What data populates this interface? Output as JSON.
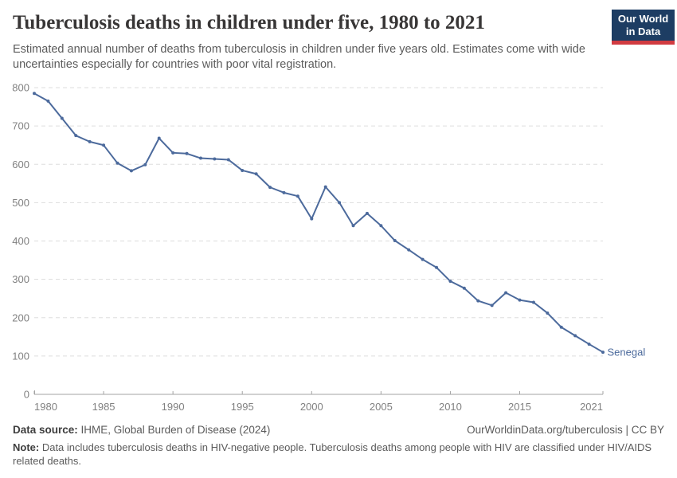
{
  "header": {
    "logo": {
      "line1": "Our World",
      "line2": "in Data",
      "bg_color": "#1d3d63",
      "accent_color": "#d13b41"
    }
  },
  "chart_data": {
    "type": "line",
    "title": "Tuberculosis deaths in children under five, 1980 to 2021",
    "subtitle": "Estimated annual number of deaths from tuberculosis in children under five years old. Estimates come with wide uncertainties especially for countries with poor vital registration.",
    "x": [
      1980,
      1981,
      1982,
      1983,
      1984,
      1985,
      1986,
      1987,
      1988,
      1989,
      1990,
      1991,
      1992,
      1993,
      1994,
      1995,
      1996,
      1997,
      1998,
      1999,
      2000,
      2001,
      2002,
      2003,
      2004,
      2005,
      2006,
      2007,
      2008,
      2009,
      2010,
      2011,
      2012,
      2013,
      2014,
      2015,
      2016,
      2017,
      2018,
      2019,
      2020,
      2021
    ],
    "series": [
      {
        "name": "Senegal",
        "color": "#4C6A9C",
        "values": [
          785,
          765,
          720,
          675,
          659,
          650,
          603,
          583,
          599,
          668,
          630,
          628,
          616,
          614,
          612,
          584,
          575,
          540,
          526,
          517,
          458,
          541,
          500,
          440,
          472,
          440,
          401,
          377,
          352,
          331,
          295,
          277,
          244,
          232,
          265,
          246,
          240,
          212,
          175,
          153,
          131,
          110
        ]
      }
    ],
    "x_ticks": [
      1980,
      1985,
      1990,
      1995,
      2000,
      2005,
      2010,
      2015,
      2021
    ],
    "y_ticks": [
      0,
      100,
      200,
      300,
      400,
      500,
      600,
      700,
      800
    ],
    "xlim": [
      1980,
      2021
    ],
    "ylim": [
      0,
      800
    ],
    "grid": "horizontal-dashed",
    "legend_position": "line-end-label",
    "colors": {
      "grid": "#dddddd",
      "axis": "#a3a3a3",
      "tick_text": "#818181"
    }
  },
  "footer": {
    "source_label": "Data source:",
    "source_text": " IHME, Global Burden of Disease (2024)",
    "license_text": "OurWorldinData.org/tuberculosis | CC BY",
    "note_label": "Note:",
    "note_text": " Data includes tuberculosis deaths in HIV-negative people. Tuberculosis deaths among people with HIV are classified under HIV/AIDS related deaths."
  }
}
